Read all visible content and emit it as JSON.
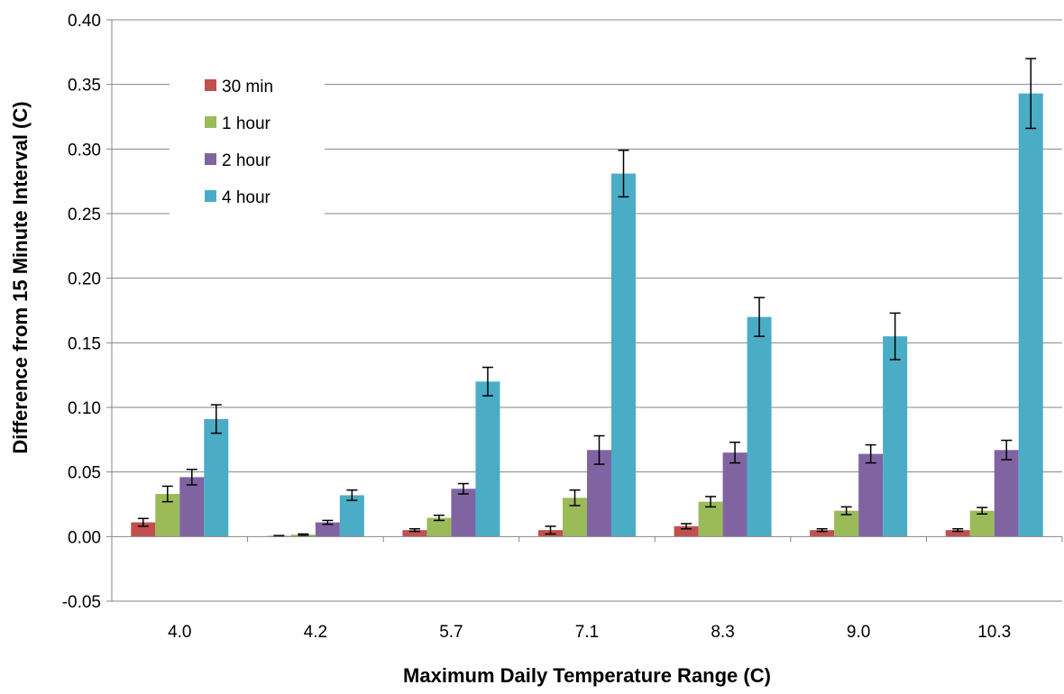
{
  "chart_data": {
    "type": "bar",
    "title": "",
    "xlabel": "Maximum Daily Temperature Range (C)",
    "ylabel": "Difference from 15 Minute Interval (C)",
    "ylim": [
      -0.05,
      0.4
    ],
    "yticks": [
      -0.05,
      0.0,
      0.05,
      0.1,
      0.15,
      0.2,
      0.25,
      0.3,
      0.35,
      0.4
    ],
    "ytick_labels": [
      "-0.05",
      "0.00",
      "0.05",
      "0.10",
      "0.15",
      "0.20",
      "0.25",
      "0.30",
      "0.35",
      "0.40"
    ],
    "grid": true,
    "legend_position": "top-left",
    "categories": [
      "4.0",
      "4.2",
      "5.7",
      "7.1",
      "8.3",
      "9.0",
      "10.3"
    ],
    "series": [
      {
        "name": "30 min",
        "color": "#c0504d",
        "values": [
          0.011,
          0.0005,
          0.005,
          0.005,
          0.008,
          0.005,
          0.005
        ],
        "errors": [
          0.003,
          0.0003,
          0.001,
          0.003,
          0.002,
          0.001,
          0.001
        ]
      },
      {
        "name": "1 hour",
        "color": "#9bbb59",
        "values": [
          0.033,
          0.0015,
          0.0145,
          0.03,
          0.027,
          0.02,
          0.02
        ],
        "errors": [
          0.006,
          0.0005,
          0.002,
          0.006,
          0.004,
          0.003,
          0.0025
        ]
      },
      {
        "name": "2 hour",
        "color": "#8064a2",
        "values": [
          0.046,
          0.011,
          0.037,
          0.067,
          0.065,
          0.064,
          0.067
        ],
        "errors": [
          0.006,
          0.0015,
          0.004,
          0.011,
          0.008,
          0.007,
          0.0075
        ]
      },
      {
        "name": "4 hour",
        "color": "#4bacc6",
        "values": [
          0.091,
          0.032,
          0.12,
          0.281,
          0.17,
          0.155,
          0.343
        ],
        "errors": [
          0.011,
          0.004,
          0.011,
          0.018,
          0.015,
          0.018,
          0.027
        ]
      }
    ]
  }
}
